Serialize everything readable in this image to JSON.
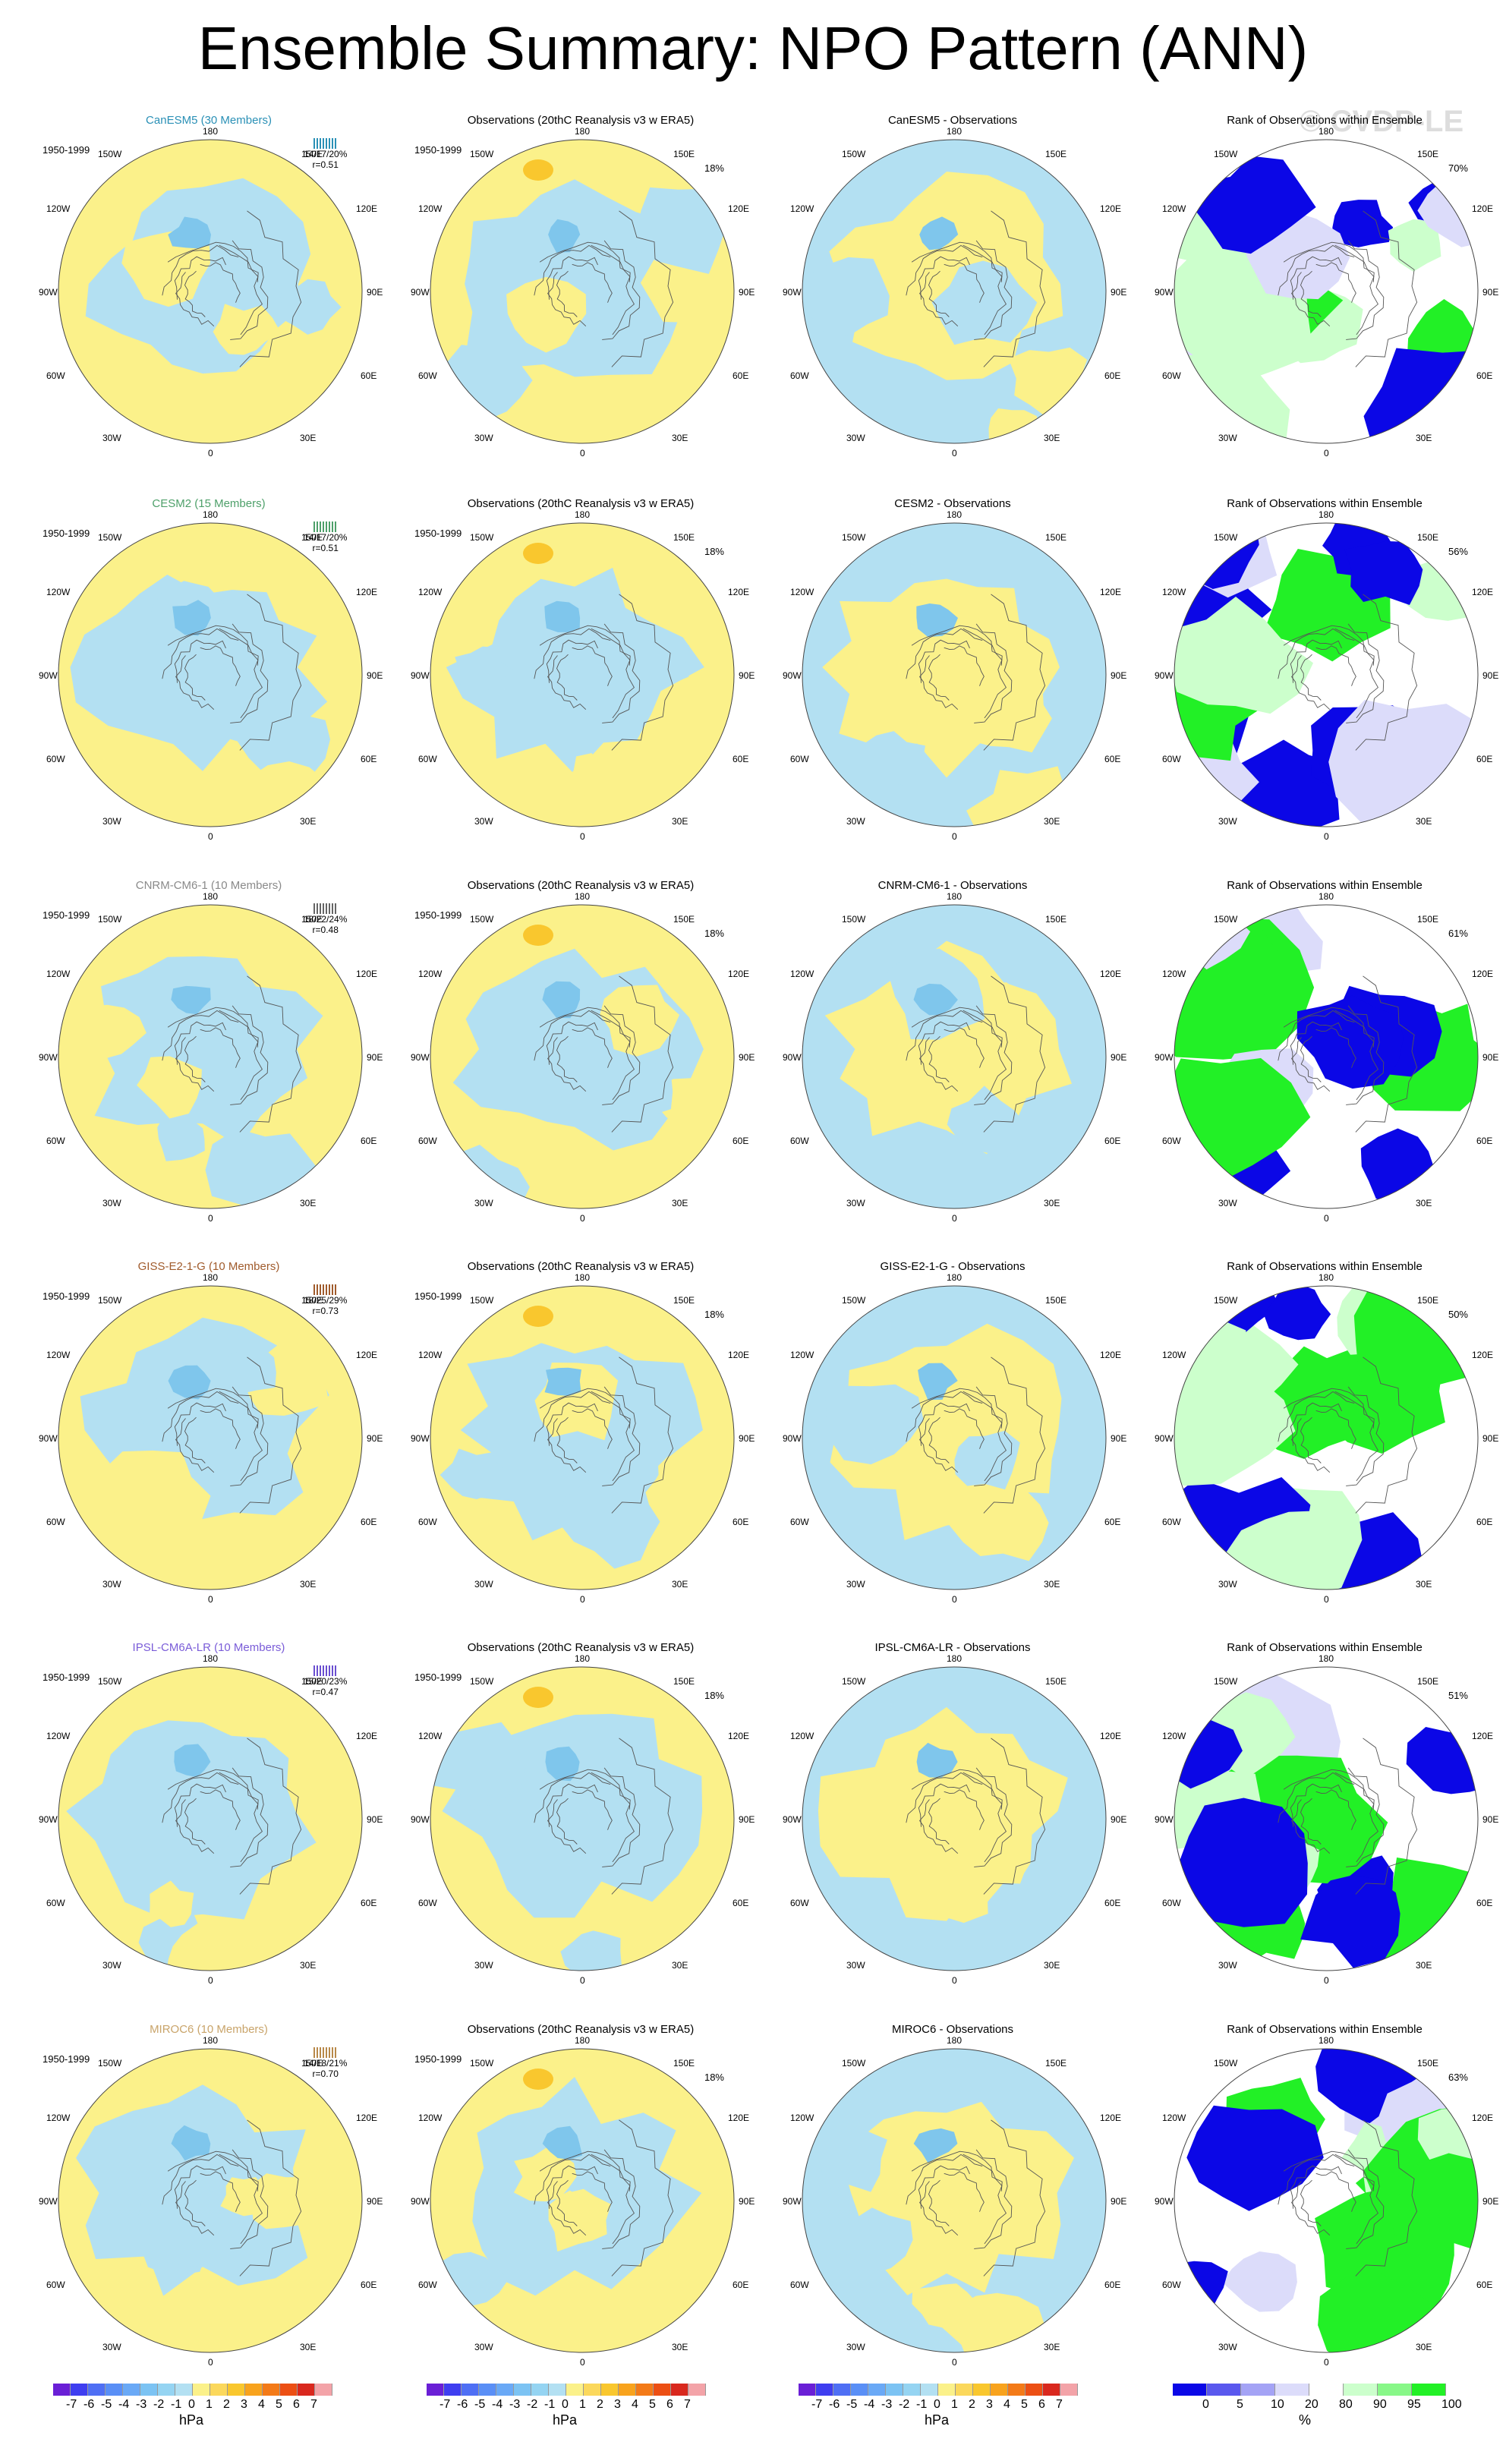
{
  "title": "Ensemble Summary: NPO Pattern (ANN)",
  "watermark": "© CVDP-LE",
  "colors": {
    "yellow": "#fbf18a",
    "lightblue": "#b3e0f2",
    "blue": "#7fc6ec",
    "orange": "#f9c72e",
    "rank_green": "#22f026",
    "rank_lightgreen": "#ccffcc",
    "rank_blue": "#0b07e6",
    "rank_lightblue": "#dcdcfa"
  },
  "lon_labels": [
    "180",
    "150W",
    "150E",
    "120W",
    "120E",
    "90W",
    "90E",
    "60W",
    "60E",
    "30W",
    "30E",
    "0"
  ],
  "rows": [
    {
      "model": "CanESM5 (30 Members)",
      "model_color": "#2a90b6",
      "period": "1950-1999",
      "stats": "14/17/20%",
      "r": "r=0.51",
      "tick_color": "#2a90b6",
      "obs_pct": "18%",
      "diff_title": "CanESM5 - Observations",
      "rank_pct": "70%"
    },
    {
      "model": "CESM2 (15 Members)",
      "model_color": "#4ea06a",
      "period": "1950-1999",
      "stats": "14/17/20%",
      "r": "r=0.51",
      "tick_color": "#4ea06a",
      "obs_pct": "18%",
      "diff_title": "CESM2 - Observations",
      "rank_pct": "56%"
    },
    {
      "model": "CNRM-CM6-1 (10 Members)",
      "model_color": "#8a8a8a",
      "period": "1950-1999",
      "stats": "18/22/24%",
      "r": "r=0.48",
      "tick_color": "#666666",
      "obs_pct": "18%",
      "diff_title": "CNRM-CM6-1 - Observations",
      "rank_pct": "61%"
    },
    {
      "model": "GISS-E2-1-G (10 Members)",
      "model_color": "#a05b2c",
      "period": "1950-1999",
      "stats": "18/25/29%",
      "r": "r=0.73",
      "tick_color": "#a05b2c",
      "obs_pct": "18%",
      "diff_title": "GISS-E2-1-G - Observations",
      "rank_pct": "50%"
    },
    {
      "model": "IPSL-CM6A-LR (10 Members)",
      "model_color": "#7a5cd8",
      "period": "1950-1999",
      "stats": "15/20/23%",
      "r": "r=0.47",
      "tick_color": "#6a4fd0",
      "obs_pct": "18%",
      "diff_title": "IPSL-CM6A-LR - Observations",
      "rank_pct": "51%"
    },
    {
      "model": "MIROC6 (10 Members)",
      "model_color": "#c9a46a",
      "period": "1950-1999",
      "stats": "14/18/21%",
      "r": "r=0.70",
      "tick_color": "#b8894a",
      "obs_pct": "18%",
      "diff_title": "MIROC6 - Observations",
      "rank_pct": "63%"
    }
  ],
  "obs_title": "Observations (20thC Reanalysis v3 w ERA5)",
  "rank_title": "Rank of Observations within Ensemble",
  "colorbar_hpa": {
    "labels": [
      "-7",
      "-6",
      "-5",
      "-4",
      "-3",
      "-2",
      "-1",
      "0",
      "1",
      "2",
      "3",
      "4",
      "5",
      "6",
      "7"
    ],
    "unit": "hPa",
    "colors": [
      "#6a1fd6",
      "#3f3ef0",
      "#4f6ff4",
      "#5a8ff6",
      "#6aa9f6",
      "#7cc3f3",
      "#95d4f2",
      "#b3e0f2",
      "#fbf18a",
      "#fbd85c",
      "#f9c72e",
      "#f8a31d",
      "#f37a18",
      "#ec4f14",
      "#d9281e",
      "#f3a3a8"
    ]
  },
  "colorbar_pct": {
    "labels": [
      "0",
      "5",
      "10",
      "20",
      "80",
      "90",
      "95",
      "100"
    ],
    "unit": "%",
    "colors": [
      "#0b07e6",
      "#5a58ee",
      "#a4a3f5",
      "#dcdcfa",
      "#ffffff",
      "#ccffcc",
      "#88f788",
      "#22f026"
    ]
  }
}
